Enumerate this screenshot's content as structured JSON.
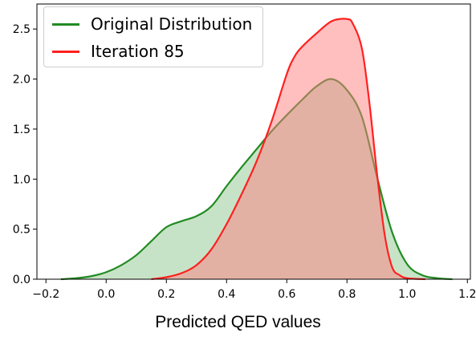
{
  "chart_data": {
    "type": "area",
    "title": "",
    "xlabel": "Predicted QED values",
    "ylabel": "",
    "xlim": [
      -0.23,
      1.21
    ],
    "ylim": [
      0.0,
      2.75
    ],
    "xticks": [
      "−0.2",
      "0.0",
      "0.2",
      "0.4",
      "0.6",
      "0.8",
      "1.0",
      "1.2"
    ],
    "xtick_values": [
      -0.2,
      0.0,
      0.2,
      0.4,
      0.6,
      0.8,
      1.0,
      1.2
    ],
    "yticks": [
      "0.0",
      "0.5",
      "1.0",
      "1.5",
      "2.0",
      "2.5"
    ],
    "ytick_values": [
      0.0,
      0.5,
      1.0,
      1.5,
      2.0,
      2.5
    ],
    "grid": false,
    "legend_position": "top-left",
    "series": [
      {
        "name": "Original Distribution",
        "color": "#228B22",
        "fill": "#90c890",
        "x": [
          -0.15,
          -0.1,
          -0.05,
          0.0,
          0.05,
          0.1,
          0.15,
          0.2,
          0.25,
          0.3,
          0.35,
          0.4,
          0.45,
          0.5,
          0.55,
          0.6,
          0.65,
          0.7,
          0.75,
          0.8,
          0.85,
          0.9,
          0.95,
          1.0,
          1.05,
          1.1,
          1.15
        ],
        "y": [
          0.0,
          0.01,
          0.03,
          0.07,
          0.14,
          0.24,
          0.38,
          0.52,
          0.58,
          0.63,
          0.73,
          0.93,
          1.12,
          1.3,
          1.48,
          1.64,
          1.79,
          1.93,
          2.0,
          1.89,
          1.62,
          1.02,
          0.47,
          0.15,
          0.04,
          0.01,
          0.0
        ]
      },
      {
        "name": "Iteration 85",
        "color": "#ff2020",
        "fill": "#ff8080",
        "x": [
          0.15,
          0.2,
          0.25,
          0.3,
          0.35,
          0.4,
          0.45,
          0.5,
          0.55,
          0.6,
          0.625,
          0.65,
          0.7,
          0.75,
          0.8,
          0.82,
          0.85,
          0.875,
          0.9,
          0.925,
          0.95,
          0.975,
          1.0,
          1.06
        ],
        "y": [
          0.0,
          0.02,
          0.06,
          0.14,
          0.3,
          0.55,
          0.85,
          1.18,
          1.58,
          2.05,
          2.22,
          2.32,
          2.46,
          2.58,
          2.6,
          2.55,
          2.3,
          1.75,
          1.05,
          0.45,
          0.12,
          0.04,
          0.01,
          0.0
        ]
      }
    ]
  }
}
